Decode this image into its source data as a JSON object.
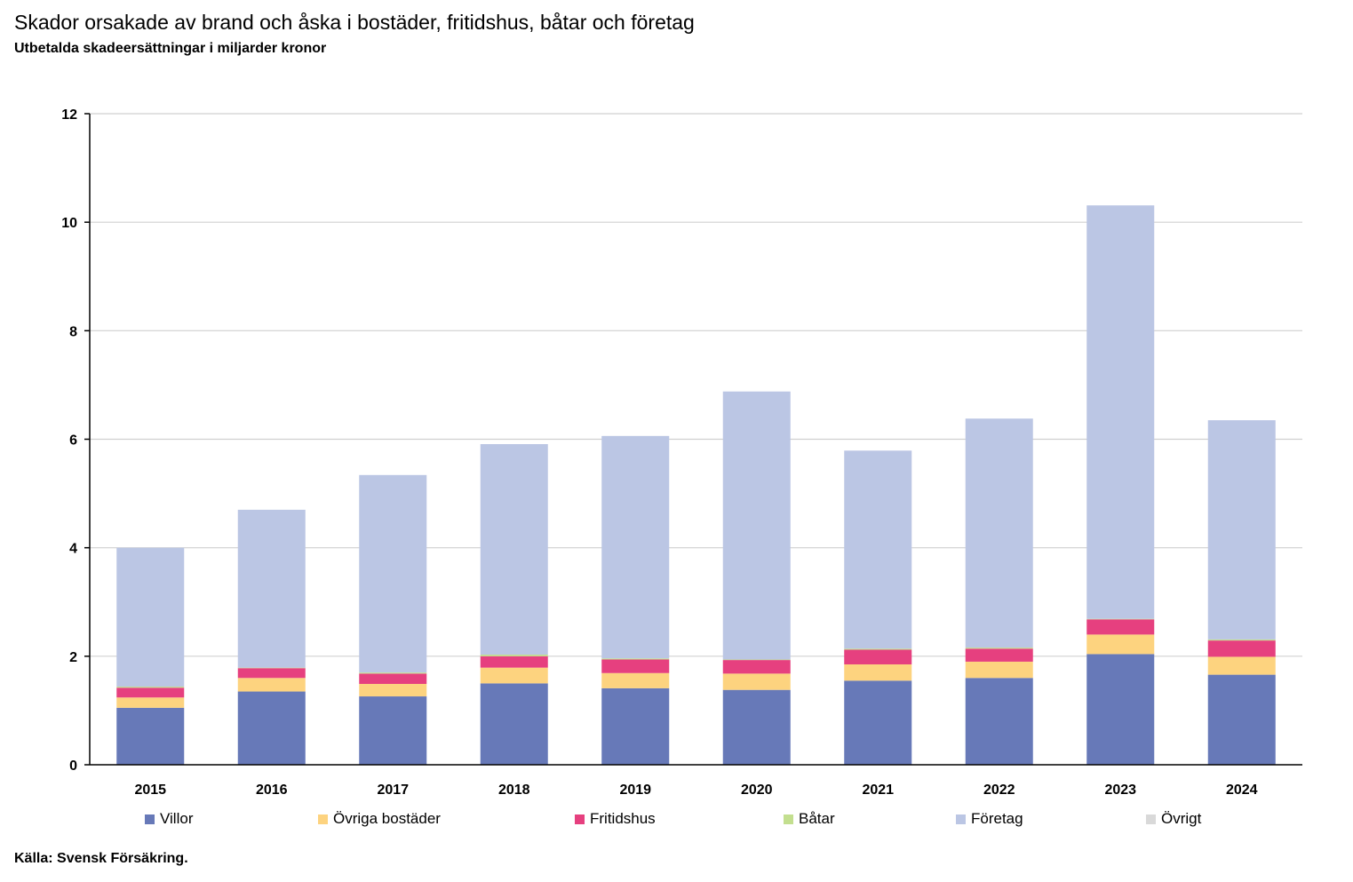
{
  "title": "Skador orsakade av brand och åska i bostäder, fritidshus, båtar och företag",
  "subtitle": "Utbetalda skadeersättningar i miljarder kronor",
  "source": "Källa: Svensk Försäkring.",
  "chart_data": {
    "type": "bar",
    "stacked": true,
    "categories": [
      "2015",
      "2016",
      "2017",
      "2018",
      "2019",
      "2020",
      "2021",
      "2022",
      "2023",
      "2024"
    ],
    "ylim": [
      0,
      12
    ],
    "yticks": [
      0,
      2,
      4,
      6,
      8,
      10,
      12
    ],
    "grid": true,
    "legend_position": "bottom",
    "series": [
      {
        "name": "Villor",
        "color": "#6779b8",
        "values": [
          1.05,
          1.35,
          1.26,
          1.5,
          1.41,
          1.38,
          1.55,
          1.6,
          2.04,
          1.66
        ]
      },
      {
        "name": "Övriga bostäder",
        "color": "#fdd37f",
        "values": [
          0.19,
          0.25,
          0.23,
          0.29,
          0.28,
          0.3,
          0.3,
          0.3,
          0.36,
          0.33
        ]
      },
      {
        "name": "Fritidshus",
        "color": "#e6407f",
        "values": [
          0.18,
          0.18,
          0.19,
          0.21,
          0.25,
          0.25,
          0.27,
          0.24,
          0.28,
          0.3
        ]
      },
      {
        "name": "Båtar",
        "color": "#c3df8f",
        "values": [
          0.02,
          0.01,
          0.02,
          0.03,
          0.02,
          0.01,
          0.02,
          0.02,
          0.01,
          0.02
        ]
      },
      {
        "name": "Företag",
        "color": "#bbc6e4",
        "values": [
          2.56,
          2.91,
          3.64,
          3.88,
          4.1,
          4.94,
          3.65,
          4.22,
          7.62,
          4.04
        ]
      },
      {
        "name": "Övrigt",
        "color": "#d9d9d9",
        "values": [
          0.0,
          0.0,
          0.0,
          0.0,
          0.0,
          0.0,
          0.0,
          0.0,
          0.0,
          0.0
        ]
      }
    ]
  }
}
